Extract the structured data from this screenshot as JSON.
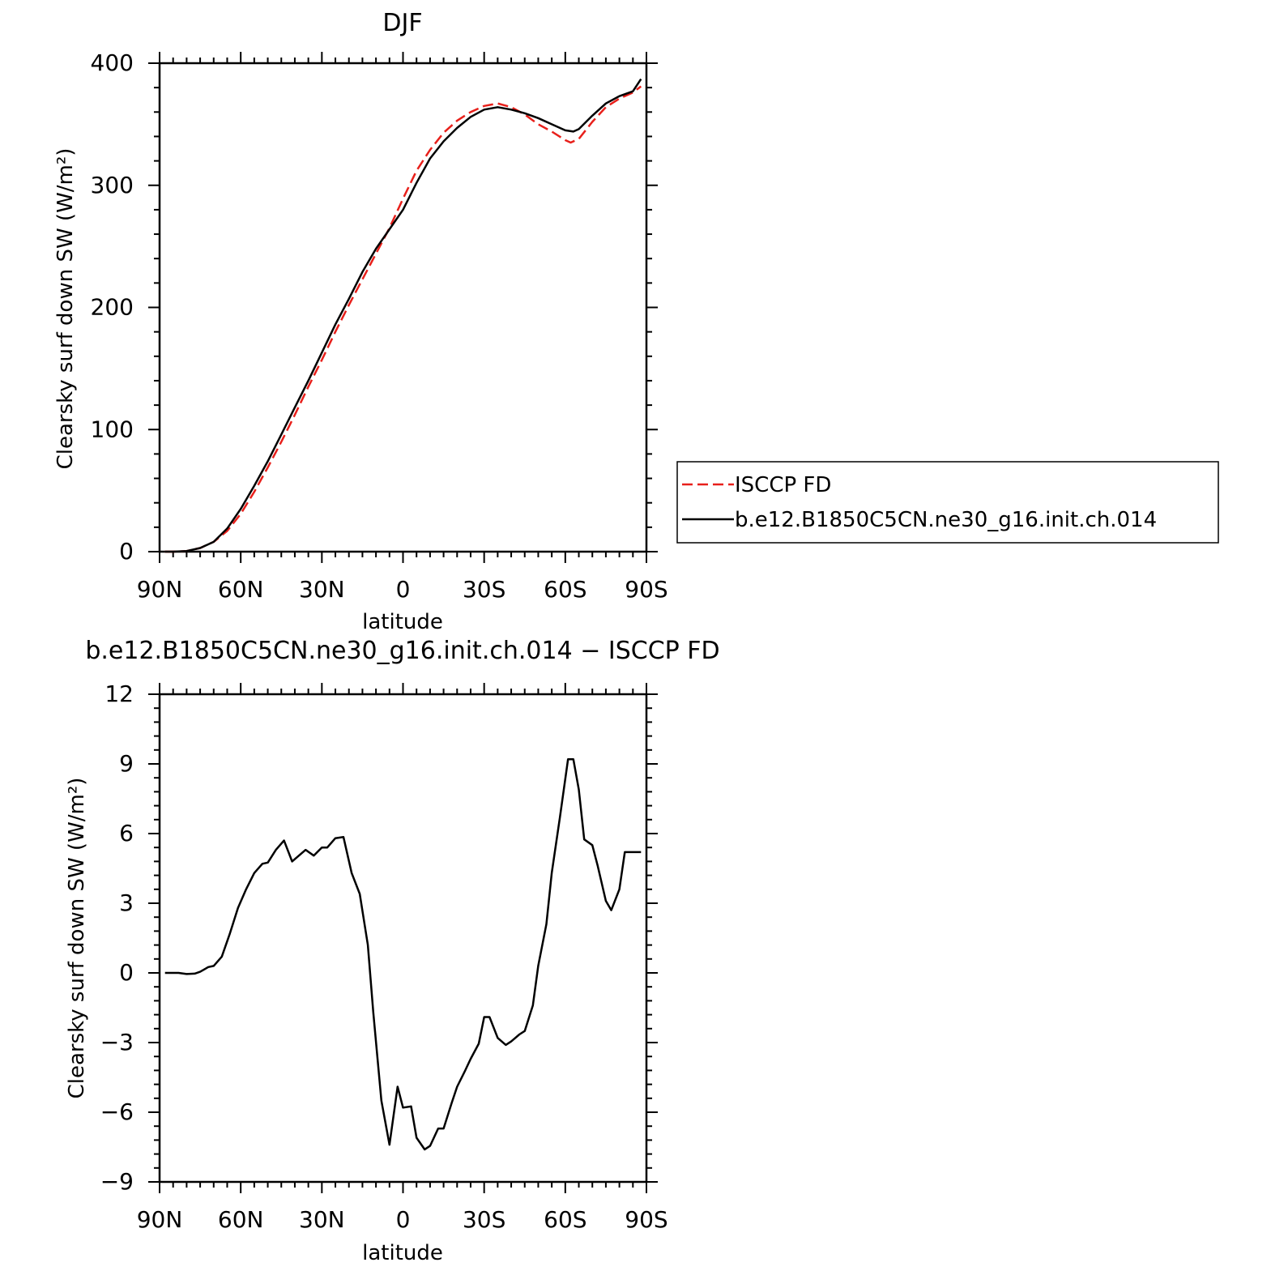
{
  "chart_data": [
    {
      "type": "line",
      "title": "DJF",
      "xlabel": "latitude",
      "ylabel": "Clearsky surf down SW (W/m²)",
      "xlim": [
        90,
        -90
      ],
      "ylim": [
        0,
        400
      ],
      "x_ticks": [
        "90N",
        "60N",
        "30N",
        "0",
        "30S",
        "60S",
        "90S"
      ],
      "x_tick_values": [
        90,
        60,
        30,
        0,
        -30,
        -60,
        -90
      ],
      "y_ticks": [
        "0",
        "100",
        "200",
        "300",
        "400"
      ],
      "y_tick_values": [
        0,
        100,
        200,
        300,
        400
      ],
      "legend_position": "right",
      "series": [
        {
          "name": "ISCCP FD",
          "style": "dashed",
          "color": "#e8201b",
          "x": [
            88,
            85,
            80,
            75,
            70,
            65,
            60,
            55,
            50,
            45,
            40,
            35,
            30,
            25,
            20,
            15,
            10,
            5,
            0,
            -5,
            -10,
            -15,
            -20,
            -25,
            -30,
            -35,
            -40,
            -45,
            -50,
            -55,
            -60,
            -62,
            -65,
            -70,
            -75,
            -80,
            -85,
            -88
          ],
          "y": [
            0,
            0,
            0.5,
            3,
            8,
            17,
            31,
            49,
            69,
            90,
            112,
            135,
            157,
            180,
            202,
            223,
            244,
            265,
            289,
            312,
            329,
            343,
            353,
            360,
            365,
            367,
            364,
            358,
            350,
            344,
            337,
            335,
            338,
            352,
            364,
            371,
            376,
            381
          ]
        },
        {
          "name": "b.e12.B1850C5CN.ne30_g16.init.ch.014",
          "style": "solid",
          "color": "#000000",
          "x": [
            88,
            85,
            80,
            75,
            70,
            65,
            60,
            55,
            50,
            45,
            40,
            35,
            30,
            25,
            20,
            15,
            10,
            5,
            0,
            -5,
            -10,
            -15,
            -20,
            -25,
            -30,
            -35,
            -40,
            -45,
            -50,
            -55,
            -60,
            -63,
            -65,
            -70,
            -75,
            -80,
            -85,
            -88
          ],
          "y": [
            0,
            0,
            0.5,
            3,
            8,
            19,
            35,
            54,
            74,
            96,
            118,
            140,
            163,
            186,
            207,
            229,
            248,
            264,
            280,
            302,
            322,
            336,
            347,
            356,
            362,
            364,
            362,
            359,
            355,
            350,
            345,
            344,
            346,
            357,
            367,
            373,
            377,
            387
          ]
        }
      ]
    },
    {
      "type": "line",
      "title": "b.e12.B1850C5CN.ne30_g16.init.ch.014 − ISCCP FD",
      "xlabel": "latitude",
      "ylabel": "Clearsky surf down SW (W/m²)",
      "xlim": [
        90,
        -90
      ],
      "ylim": [
        -9,
        12
      ],
      "x_ticks": [
        "90N",
        "60N",
        "30N",
        "0",
        "30S",
        "60S",
        "90S"
      ],
      "x_tick_values": [
        90,
        60,
        30,
        0,
        -30,
        -60,
        -90
      ],
      "y_ticks": [
        "−9",
        "−6",
        "−3",
        "0",
        "3",
        "6",
        "9",
        "12"
      ],
      "y_tick_values": [
        -9,
        -6,
        -3,
        0,
        3,
        6,
        9,
        12
      ],
      "series": [
        {
          "style": "solid",
          "color": "#000000",
          "x": [
            88,
            85,
            83,
            80,
            77,
            75,
            72,
            70,
            67,
            64,
            61,
            58,
            55,
            52,
            50,
            47,
            44,
            41,
            38,
            36,
            33,
            30,
            28,
            25,
            22,
            19,
            16,
            13,
            11,
            8,
            5,
            2,
            0,
            -3,
            -5,
            -8,
            -10,
            -13,
            -15,
            -18,
            -20,
            -23,
            -25,
            -28,
            -30,
            -32,
            -35,
            -38,
            -40,
            -43,
            -45,
            -48,
            -50,
            -53,
            -55,
            -58,
            -61,
            -63,
            -65,
            -67,
            -70,
            -72,
            -75,
            -77,
            -80,
            -82,
            -84,
            -86,
            -88
          ],
          "y": [
            0,
            0,
            0,
            -0.05,
            -0.03,
            0.05,
            0.25,
            0.3,
            0.7,
            1.7,
            2.8,
            3.6,
            4.3,
            4.7,
            4.75,
            5.3,
            5.7,
            4.8,
            5.1,
            5.3,
            5.05,
            5.4,
            5.4,
            5.8,
            5.85,
            4.3,
            3.4,
            1.2,
            -1.7,
            -5.5,
            -7.4,
            -4.9,
            -5.8,
            -5.75,
            -7.1,
            -7.6,
            -7.45,
            -6.7,
            -6.7,
            -5.6,
            -4.9,
            -4.2,
            -3.7,
            -3.05,
            -1.9,
            -1.9,
            -2.8,
            -3.1,
            -2.95,
            -2.65,
            -2.5,
            -1.4,
            0.3,
            2.1,
            4.3,
            6.7,
            9.2,
            9.2,
            7.9,
            5.75,
            5.5,
            4.6,
            3.1,
            2.7,
            3.6,
            5.2,
            5.2,
            5.2,
            5.2
          ]
        }
      ]
    }
  ]
}
